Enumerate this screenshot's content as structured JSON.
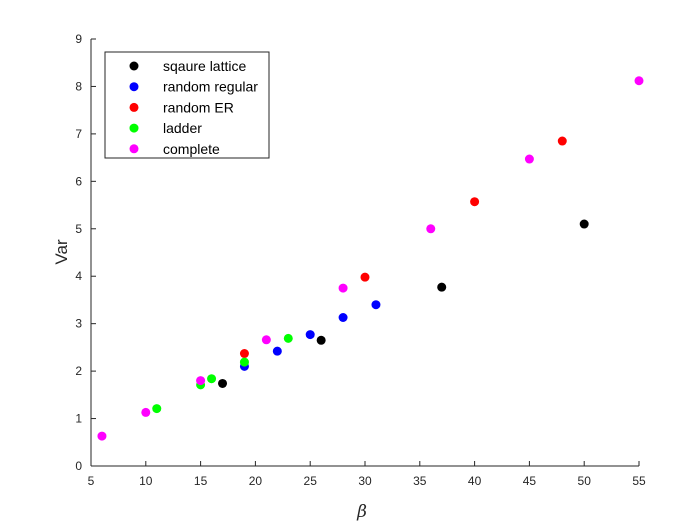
{
  "chart_data": {
    "type": "scatter",
    "title": "",
    "xlabel": "β",
    "ylabel": "Var",
    "xlim": [
      5,
      55
    ],
    "ylim": [
      0,
      9
    ],
    "xticks": [
      5,
      10,
      15,
      20,
      25,
      30,
      35,
      40,
      45,
      50,
      55
    ],
    "yticks": [
      0,
      1,
      2,
      3,
      4,
      5,
      6,
      7,
      8,
      9
    ],
    "grid": false,
    "legend_position": "top-left",
    "series": [
      {
        "name": "sqaure lattice",
        "color": "#000000",
        "points": [
          [
            17,
            1.74
          ],
          [
            26,
            2.65
          ],
          [
            37,
            3.77
          ],
          [
            50,
            5.1
          ]
        ]
      },
      {
        "name": "random regular",
        "color": "#0000ff",
        "points": [
          [
            19,
            2.1
          ],
          [
            22,
            2.42
          ],
          [
            25,
            2.77
          ],
          [
            28,
            3.13
          ],
          [
            31,
            3.4
          ]
        ]
      },
      {
        "name": "random ER",
        "color": "#ff0000",
        "points": [
          [
            19,
            2.37
          ],
          [
            30,
            3.98
          ],
          [
            40,
            5.57
          ],
          [
            48,
            6.85
          ]
        ]
      },
      {
        "name": "ladder",
        "color": "#00ff00",
        "points": [
          [
            11,
            1.21
          ],
          [
            15,
            1.71
          ],
          [
            16,
            1.84
          ],
          [
            19,
            2.19
          ],
          [
            23,
            2.69
          ]
        ]
      },
      {
        "name": "complete",
        "color": "#ff00ff",
        "points": [
          [
            6,
            0.63
          ],
          [
            10,
            1.13
          ],
          [
            15,
            1.8
          ],
          [
            21,
            2.66
          ],
          [
            28,
            3.75
          ],
          [
            36,
            5.0
          ],
          [
            45,
            6.47
          ],
          [
            55,
            8.12
          ]
        ]
      }
    ]
  }
}
